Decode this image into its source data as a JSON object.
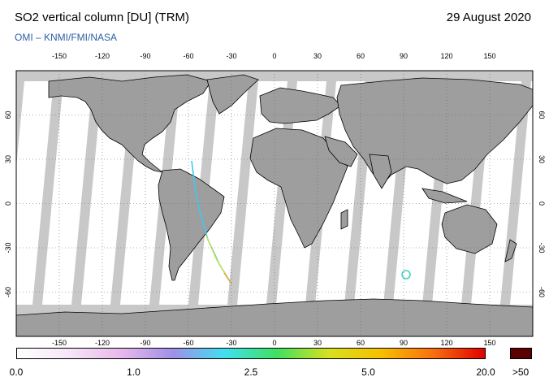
{
  "header": {
    "title": "SO2 vertical column [DU] (TRM)",
    "date": "29 August 2020",
    "credit": "OMI  –  KNMI/FMI/NASA"
  },
  "map": {
    "lon_ticks": [
      "-150",
      "-120",
      "-90",
      "-60",
      "-30",
      "0",
      "30",
      "60",
      "90",
      "120",
      "150"
    ],
    "lat_ticks": [
      "60",
      "30",
      "0",
      "-30",
      "-60"
    ],
    "colors": {
      "ocean": "#ffffff",
      "land_shade": "#9e9e9e",
      "no_data": "#c8c8c8",
      "coast": "#000000"
    }
  },
  "colorbar": {
    "labels": [
      "0.0",
      "1.0",
      "2.5",
      "5.0",
      "20.0"
    ],
    "overflow_label": ">50",
    "gradient": [
      "#ffffff",
      "#f6e6f6",
      "#e8b8ec",
      "#a090e8",
      "#40e0f0",
      "#40e060",
      "#d8e020",
      "#f8c000",
      "#f87010",
      "#e00000"
    ],
    "overflow_color": "#5a0000"
  }
}
